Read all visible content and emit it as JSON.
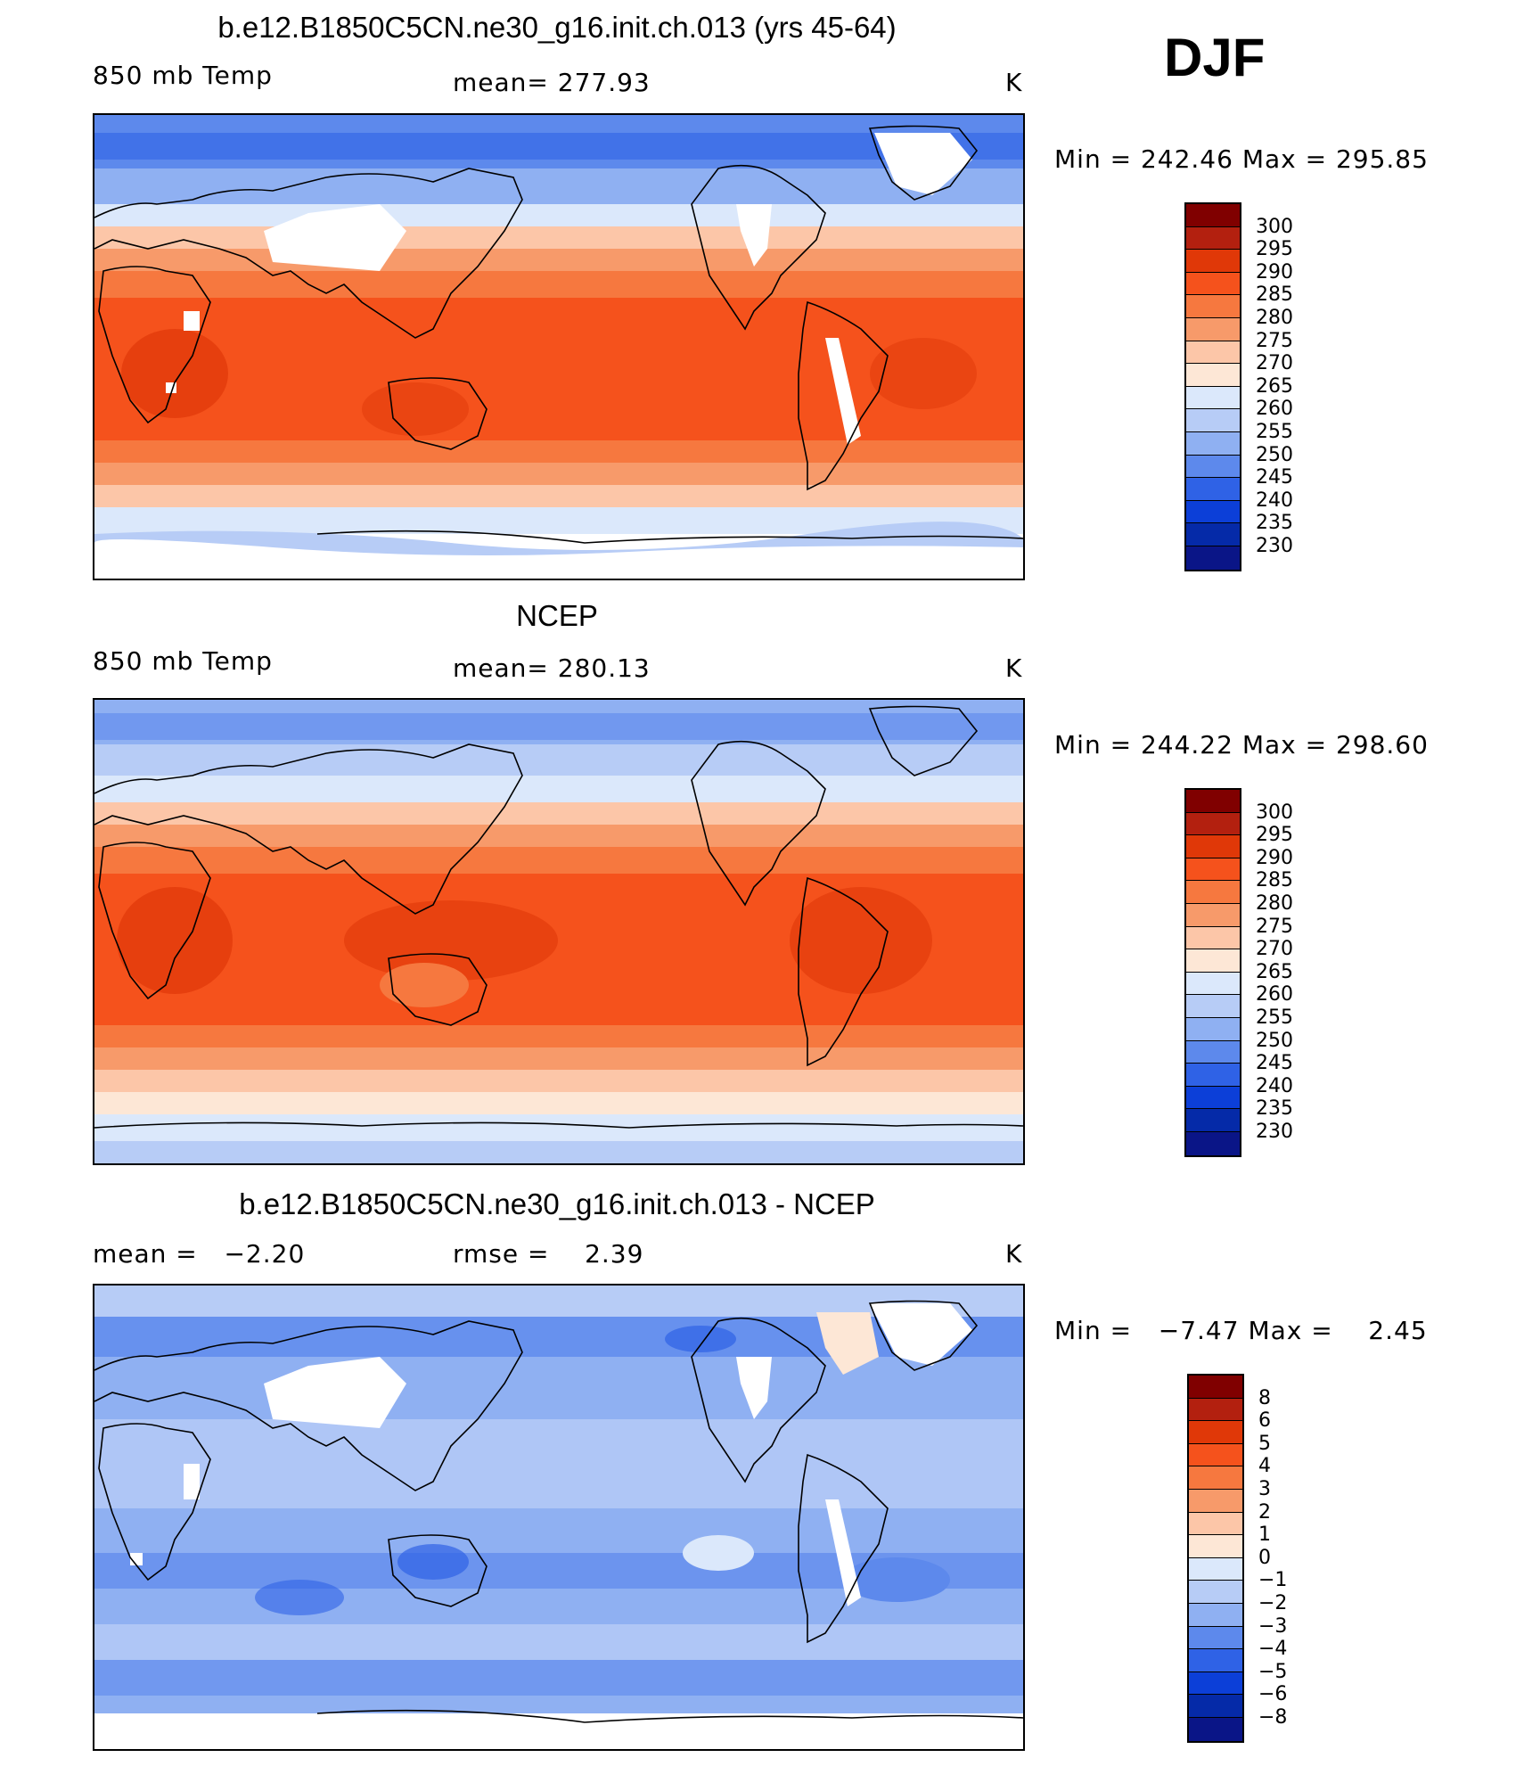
{
  "season": "DJF",
  "panels": [
    {
      "title": "b.e12.B1850C5CN.ne30_g16.init.ch.013 (yrs 45-64)",
      "left_label": "850 mb Temp",
      "center_label": "mean= 277.93",
      "units": "K",
      "minmax": "Min = 242.46 Max = 295.85",
      "colorbar_levels": [
        "300",
        "295",
        "290",
        "285",
        "280",
        "275",
        "270",
        "265",
        "260",
        "255",
        "250",
        "245",
        "240",
        "235",
        "230"
      ]
    },
    {
      "title": "NCEP",
      "left_label": "850 mb Temp",
      "center_label": "mean= 280.13",
      "units": "K",
      "minmax": "Min = 244.22 Max = 298.60",
      "colorbar_levels": [
        "300",
        "295",
        "290",
        "285",
        "280",
        "275",
        "270",
        "265",
        "260",
        "255",
        "250",
        "245",
        "240",
        "235",
        "230"
      ]
    },
    {
      "title": "b.e12.B1850C5CN.ne30_g16.init.ch.013 - NCEP",
      "left_label": "mean =   −2.20",
      "center_label": "rmse =    2.39",
      "units": "K",
      "minmax": "Min =   −7.47 Max =    2.45",
      "colorbar_levels": [
        "8",
        "6",
        "5",
        "4",
        "3",
        "2",
        "1",
        "0",
        "−1",
        "−2",
        "−3",
        "−4",
        "−5",
        "−6",
        "−8"
      ]
    }
  ],
  "colors": {
    "temp_scale": [
      "#800000",
      "#b3200f",
      "#e03808",
      "#f5521c",
      "#f6783f",
      "#f79a6a",
      "#fcc6a8",
      "#fde7d6",
      "#dbe8fb",
      "#b7ccf6",
      "#8fb0f2",
      "#5d89ec",
      "#2f62e6",
      "#0c3fd8",
      "#052aa8",
      "#0a1587"
    ],
    "land_outline": "#000000",
    "missing": "#ffffff"
  }
}
